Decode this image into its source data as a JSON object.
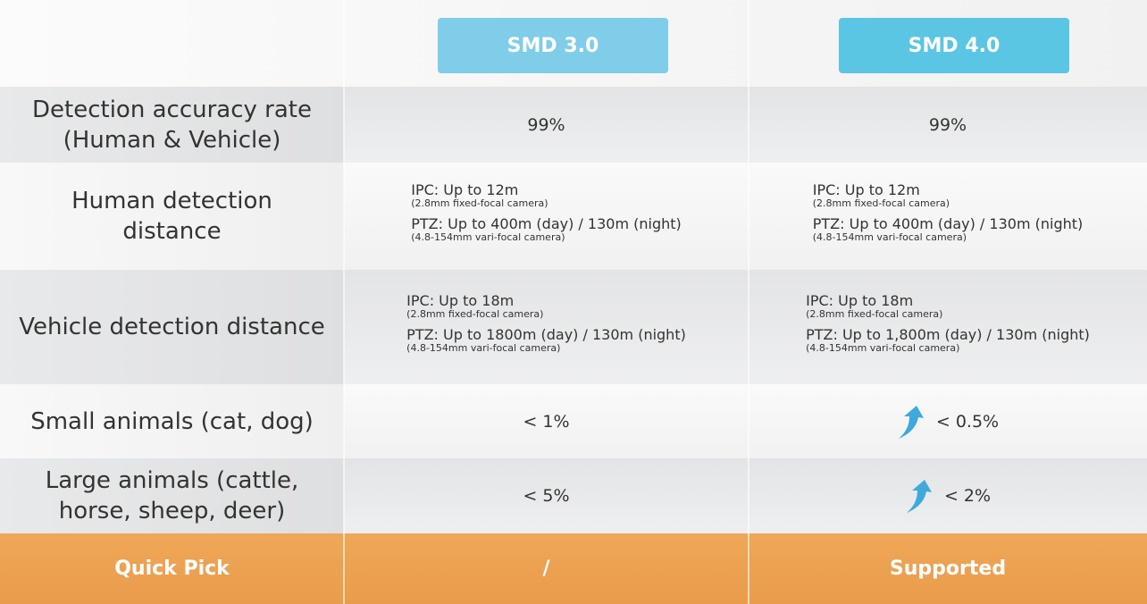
{
  "table": {
    "headers": [
      "SMD 3.0",
      "SMD 4.0"
    ],
    "rows": [
      {
        "label": [
          "Detection accuracy rate",
          "(Human & Vehicle)"
        ],
        "cells": [
          {
            "text": "99%"
          },
          {
            "text": "99%"
          }
        ]
      },
      {
        "label": [
          "Human detection",
          "distance"
        ],
        "cells": [
          {
            "items": [
              {
                "text": "IPC: Up to 12m",
                "note": "(2.8mm fixed-focal camera)"
              },
              {
                "text": "PTZ: Up to 400m (day) / 130m (night)",
                "note": "(4.8-154mm vari-focal camera)"
              }
            ]
          },
          {
            "items": [
              {
                "text": "IPC: Up to 12m",
                "note": "(2.8mm fixed-focal camera)"
              },
              {
                "text": "PTZ: Up to 400m (day) / 130m (night)",
                "note": "(4.8-154mm vari-focal camera)"
              }
            ]
          }
        ]
      },
      {
        "label": [
          "Vehicle detection distance"
        ],
        "cells": [
          {
            "items": [
              {
                "text": "IPC: Up to 18m",
                "note": "(2.8mm fixed-focal camera)"
              },
              {
                "text": "PTZ: Up to 1800m (day) / 130m (night)",
                "note": "(4.8-154mm vari-focal camera)"
              }
            ]
          },
          {
            "items": [
              {
                "text": "IPC: Up to 18m",
                "note": "(2.8mm fixed-focal camera)"
              },
              {
                "text": "PTZ: Up to 1,800m (day) / 130m (night)",
                "note": "(4.8-154mm vari-focal camera)"
              }
            ]
          }
        ]
      },
      {
        "label": [
          "Small animals (cat, dog)"
        ],
        "cells": [
          {
            "text": "< 1%"
          },
          {
            "text": "< 0.5%"
          }
        ]
      },
      {
        "label": [
          "Large animals (cattle,",
          "horse, sheep, deer)"
        ],
        "cells": [
          {
            "text": "< 5%"
          },
          {
            "text": "< 2%"
          }
        ]
      }
    ],
    "footer": {
      "label": "Quick Pick",
      "cells": [
        "/",
        "Supported"
      ]
    }
  }
}
